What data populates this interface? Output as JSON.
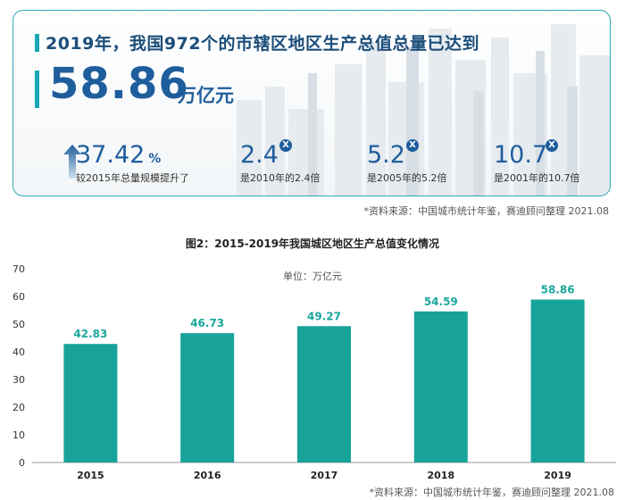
{
  "summary": {
    "headline": "2019年，我国972个的市辖区地区生产总值总量已达到",
    "total_value": "58.86",
    "total_unit": "万亿元",
    "growth": {
      "value": "37.42",
      "suffix": "%",
      "desc": "较2015年总量规模提升了"
    },
    "multiples": [
      {
        "value": "2.4",
        "badge": "X",
        "desc": "是2010年的2.4倍"
      },
      {
        "value": "5.2",
        "badge": "X",
        "desc": "是2005年的5.2倍"
      },
      {
        "value": "10.7",
        "badge": "X",
        "desc": "是2001年的10.7倍"
      }
    ],
    "source": "*资料来源：中国城市统计年鉴，赛迪顾问整理 2021.08"
  },
  "chart_data": {
    "type": "bar",
    "title": "图2：2015-2019年我国城区地区生产总值变化情况",
    "unit_label": "单位：万亿元",
    "categories": [
      "2015",
      "2016",
      "2017",
      "2018",
      "2019"
    ],
    "values": [
      42.83,
      46.73,
      49.27,
      54.59,
      58.86
    ],
    "value_labels": [
      "42.83",
      "46.73",
      "49.27",
      "54.59",
      "58.86"
    ],
    "yticks": [
      "0",
      "10",
      "20",
      "30",
      "40",
      "50",
      "60",
      "70"
    ],
    "ylim": [
      0,
      70
    ],
    "bar_color": "#17a39a",
    "label_color": "#1aa79c",
    "source": "*资料来源：中国城市统计年鉴，赛迪顾问整理 2021.08"
  }
}
